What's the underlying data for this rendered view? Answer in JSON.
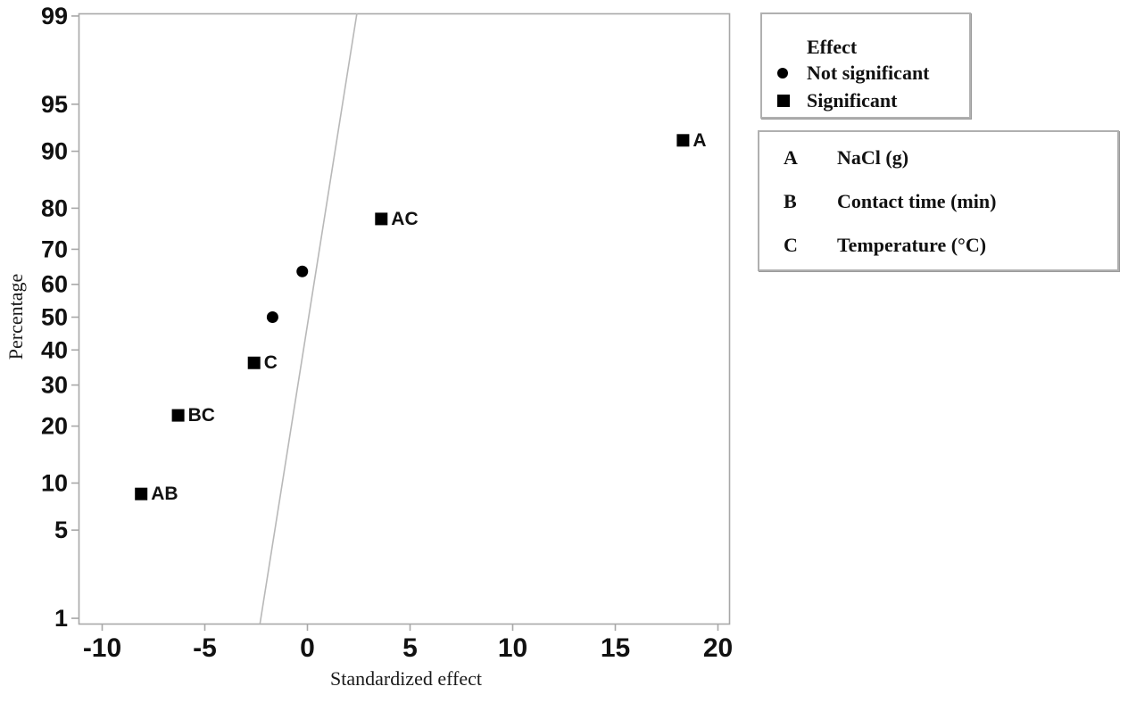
{
  "chart_data": {
    "type": "scatter",
    "subtype": "normal-probability-plot-of-effects",
    "title": "",
    "xlabel": "Standardized effect",
    "ylabel": "Percentage",
    "x_ticks": [
      -10,
      -5,
      0,
      5,
      10,
      15,
      20
    ],
    "y_ticks": [
      1,
      5,
      10,
      20,
      30,
      40,
      50,
      60,
      70,
      80,
      90,
      95,
      99
    ],
    "y_scale": "normal-probability",
    "xlim": [
      -11.1,
      20.6
    ],
    "ylim_percent": [
      1,
      99
    ],
    "grid": false,
    "points": [
      {
        "label": "AB",
        "x": -8.1,
        "percent": 8.6,
        "significant": true
      },
      {
        "label": "BC",
        "x": -6.3,
        "percent": 22.4,
        "significant": true
      },
      {
        "label": "C",
        "x": -2.6,
        "percent": 36.2,
        "significant": true
      },
      {
        "label": "",
        "x": -1.7,
        "percent": 50.0,
        "significant": false
      },
      {
        "label": "",
        "x": -0.25,
        "percent": 63.8,
        "significant": false
      },
      {
        "label": "AC",
        "x": 3.6,
        "percent": 77.6,
        "significant": true
      },
      {
        "label": "A",
        "x": 18.3,
        "percent": 91.4,
        "significant": true
      }
    ],
    "reference_line": {
      "x_at_p1": -2.27,
      "x_at_p99": 2.39
    }
  },
  "legend": {
    "title": "Effect",
    "items": [
      {
        "marker": "circle",
        "label": "Not significant"
      },
      {
        "marker": "square",
        "label": "Significant"
      }
    ]
  },
  "factors": [
    {
      "code": "A",
      "name": "NaCl (g)"
    },
    {
      "code": "B",
      "name": "Contact time (min)"
    },
    {
      "code": "C",
      "name": "Temperature (°C)"
    }
  ],
  "colors": {
    "marker": "#000000",
    "text": "#111111",
    "frame": "#a8a8a8",
    "tick": "#a8a8a8",
    "reference_line": "#b8b8b8",
    "panel_border": "#b0b0b0",
    "background": "#ffffff"
  }
}
